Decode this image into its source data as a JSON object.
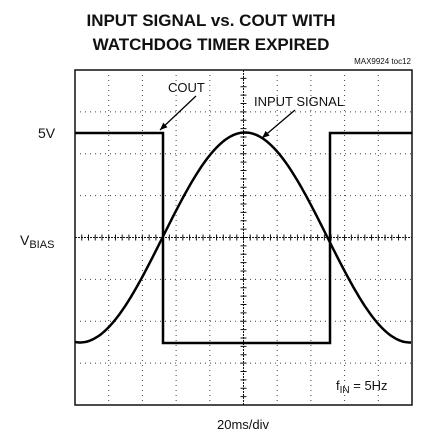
{
  "header": {
    "title_lines": [
      "INPUT SIGNAL vs. COUT WITH",
      "WATCHDOG TIMER EXPIRED"
    ],
    "figure_id": "MAX9924 toc12"
  },
  "labels": {
    "level_high": "5V",
    "level_bias": {
      "main": "V",
      "sub": "BIAS"
    },
    "trace_cout": "COUT",
    "trace_input": "INPUT SIGNAL",
    "frequency": {
      "main": "f",
      "sub": "IN",
      "rest": " = 5Hz"
    },
    "timebase": "20ms/div"
  }
}
